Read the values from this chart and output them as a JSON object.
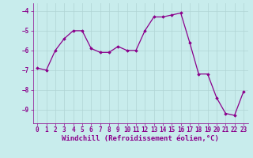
{
  "x": [
    0,
    1,
    2,
    3,
    4,
    5,
    6,
    7,
    8,
    9,
    10,
    11,
    12,
    13,
    14,
    15,
    16,
    17,
    18,
    19,
    20,
    21,
    22,
    23
  ],
  "y": [
    -6.9,
    -7.0,
    -6.0,
    -5.4,
    -5.0,
    -5.0,
    -5.9,
    -6.1,
    -6.1,
    -5.8,
    -6.0,
    -6.0,
    -5.0,
    -4.3,
    -4.3,
    -4.2,
    -4.1,
    -5.6,
    -7.2,
    -7.2,
    -8.4,
    -9.2,
    -9.3,
    -8.1
  ],
  "line_color": "#8b008b",
  "marker": "D",
  "marker_size": 1.8,
  "line_width": 0.9,
  "bg_color": "#c8ecec",
  "grid_color": "#b0d4d4",
  "xlabel": "Windchill (Refroidissement éolien,°C)",
  "xlabel_fontsize": 6.5,
  "tick_fontsize": 5.5,
  "ylim": [
    -9.7,
    -3.6
  ],
  "xlim": [
    -0.5,
    23.5
  ],
  "yticks": [
    -9,
    -8,
    -7,
    -6,
    -5,
    -4
  ],
  "xticks": [
    0,
    1,
    2,
    3,
    4,
    5,
    6,
    7,
    8,
    9,
    10,
    11,
    12,
    13,
    14,
    15,
    16,
    17,
    18,
    19,
    20,
    21,
    22,
    23
  ]
}
